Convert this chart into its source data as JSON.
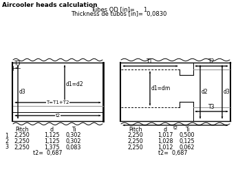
{
  "title": "Aircooler heads calculation",
  "header_line1": "Tubes OD [in]=     1",
  "header_line2": "Thickness de tubos [in]=  0,0830",
  "bg_color": "#ffffff",
  "left_table": {
    "rows": [
      [
        "1",
        "2,250",
        "1,125",
        "0,302"
      ],
      [
        "2",
        "2,250",
        "1,125",
        "0,302"
      ],
      [
        "3",
        "2,250",
        "1,375",
        "0,083"
      ]
    ],
    "t2_line": "t2=  0,687"
  },
  "right_table": {
    "rows": [
      [
        "2,250",
        "1,017",
        "0,500"
      ],
      [
        "2,250",
        "1,028",
        "0,125"
      ],
      [
        "2,250",
        "1,012",
        "0,062"
      ]
    ],
    "t2_line": "t2=  0,687"
  }
}
